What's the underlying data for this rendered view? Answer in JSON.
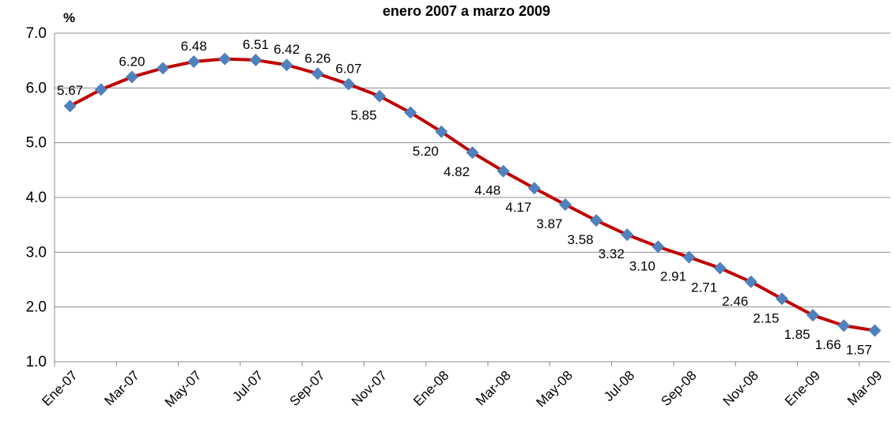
{
  "chart_data": {
    "type": "line",
    "title": "enero 2007 a marzo 2009",
    "y_label": "%",
    "categories": [
      "Ene-07",
      null,
      "Mar-07",
      null,
      "May-07",
      null,
      "Jul-07",
      null,
      "Sep-07",
      null,
      "Nov-07",
      null,
      "Ene-08",
      null,
      "Mar-08",
      null,
      "May-08",
      null,
      "Jul-08",
      null,
      "Sep-08",
      null,
      "Nov-08",
      null,
      "Ene-09",
      null,
      "Mar-09"
    ],
    "series": [
      {
        "name": "%",
        "color": "#c00000",
        "marker_color": "#4f81bd",
        "values": [
          5.67,
          5.97,
          6.2,
          6.36,
          6.48,
          6.53,
          6.51,
          6.42,
          6.26,
          6.07,
          5.85,
          5.55,
          5.2,
          4.82,
          4.48,
          4.17,
          3.87,
          3.58,
          3.32,
          3.1,
          2.91,
          2.71,
          2.46,
          2.15,
          1.85,
          1.66,
          1.57
        ],
        "value_labels": [
          "5.67",
          null,
          "6.20",
          null,
          "6.48",
          null,
          "6.51",
          "6.42",
          "6.26",
          "6.07",
          "5.85",
          null,
          "5.20",
          "4.82",
          "4.48",
          "4.17",
          "3.87",
          "3.58",
          "3.32",
          "3.10",
          "2.91",
          "2.71",
          "2.46",
          "2.15",
          "1.85",
          "1.66",
          "1.57"
        ]
      }
    ],
    "ylim": [
      1,
      7
    ],
    "yticks": [
      {
        "value": 1,
        "label": "1.0"
      },
      {
        "value": 2,
        "label": "2.0"
      },
      {
        "value": 3,
        "label": "3.0"
      },
      {
        "value": 4,
        "label": "4.0"
      },
      {
        "value": 5,
        "label": "5.0"
      },
      {
        "value": 6,
        "label": "6.0"
      },
      {
        "value": 7,
        "label": "7.0"
      }
    ],
    "grid": true
  }
}
